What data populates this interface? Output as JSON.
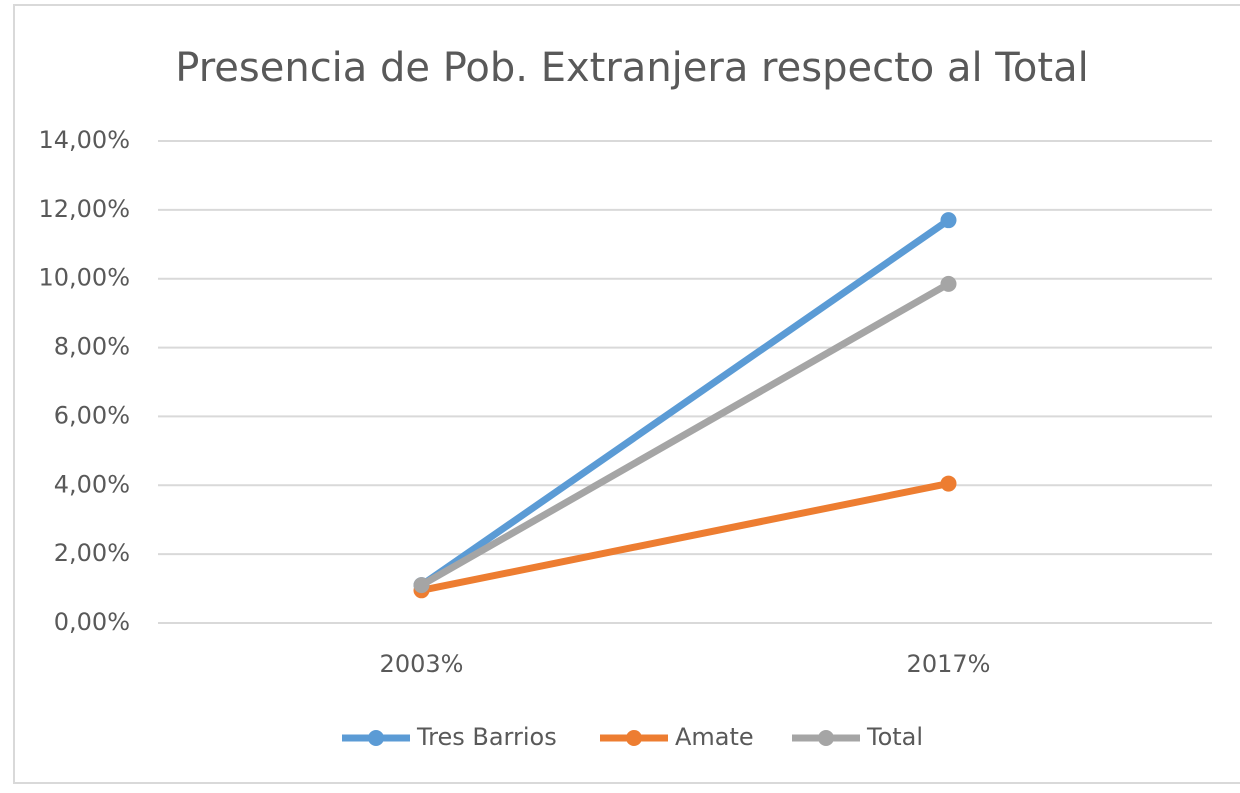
{
  "chart_data": {
    "type": "line",
    "title": "Presencia de Pob. Extranjera respecto al Total",
    "categories": [
      "2003%",
      "2017%"
    ],
    "series": [
      {
        "name": "Tres Barrios",
        "color": "#5b9bd5",
        "values": [
          1.1,
          11.7
        ]
      },
      {
        "name": "Amate",
        "color": "#ed7d31",
        "values": [
          0.95,
          4.05
        ]
      },
      {
        "name": "Total",
        "color": "#a5a5a5",
        "values": [
          1.1,
          9.85
        ]
      }
    ],
    "ylim": [
      0,
      14
    ],
    "yticks": [
      {
        "value": 0,
        "label": "0,00%"
      },
      {
        "value": 2,
        "label": "2,00%"
      },
      {
        "value": 4,
        "label": "4,00%"
      },
      {
        "value": 6,
        "label": "6,00%"
      },
      {
        "value": 8,
        "label": "8,00%"
      },
      {
        "value": 10,
        "label": "10,00%"
      },
      {
        "value": 12,
        "label": "12,00%"
      },
      {
        "value": 14,
        "label": "14,00%"
      }
    ],
    "grid": true,
    "legend": "bottom"
  }
}
